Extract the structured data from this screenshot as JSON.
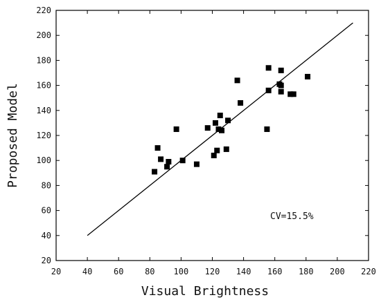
{
  "chart_data": {
    "type": "scatter",
    "xlabel": "Visual Brightness",
    "ylabel": "Proposed Model",
    "xlim": [
      20,
      220
    ],
    "ylim": [
      20,
      220
    ],
    "xticks": [
      20,
      40,
      60,
      80,
      100,
      120,
      140,
      160,
      180,
      200,
      220
    ],
    "yticks": [
      20,
      40,
      60,
      80,
      100,
      120,
      140,
      160,
      180,
      200,
      220
    ],
    "grid": false,
    "annotation": "CV=15.5%",
    "reference_line": {
      "x": [
        40,
        210
      ],
      "y": [
        40,
        210
      ]
    },
    "points": [
      {
        "x": 83,
        "y": 91
      },
      {
        "x": 85,
        "y": 110
      },
      {
        "x": 87,
        "y": 101
      },
      {
        "x": 91,
        "y": 95
      },
      {
        "x": 92,
        "y": 99
      },
      {
        "x": 97,
        "y": 125
      },
      {
        "x": 101,
        "y": 100
      },
      {
        "x": 110,
        "y": 97
      },
      {
        "x": 117,
        "y": 126
      },
      {
        "x": 121,
        "y": 104
      },
      {
        "x": 122,
        "y": 130
      },
      {
        "x": 123,
        "y": 108
      },
      {
        "x": 124,
        "y": 125
      },
      {
        "x": 125,
        "y": 136
      },
      {
        "x": 126,
        "y": 124
      },
      {
        "x": 129,
        "y": 109
      },
      {
        "x": 130,
        "y": 132
      },
      {
        "x": 136,
        "y": 164
      },
      {
        "x": 138,
        "y": 146
      },
      {
        "x": 155,
        "y": 125
      },
      {
        "x": 156,
        "y": 156
      },
      {
        "x": 156,
        "y": 174
      },
      {
        "x": 163,
        "y": 161
      },
      {
        "x": 164,
        "y": 172
      },
      {
        "x": 164,
        "y": 160
      },
      {
        "x": 164,
        "y": 155
      },
      {
        "x": 170,
        "y": 153
      },
      {
        "x": 172,
        "y": 153
      },
      {
        "x": 181,
        "y": 167
      }
    ],
    "colors": {
      "marker": "#000000",
      "line": "#000000",
      "axis": "#000000"
    }
  }
}
